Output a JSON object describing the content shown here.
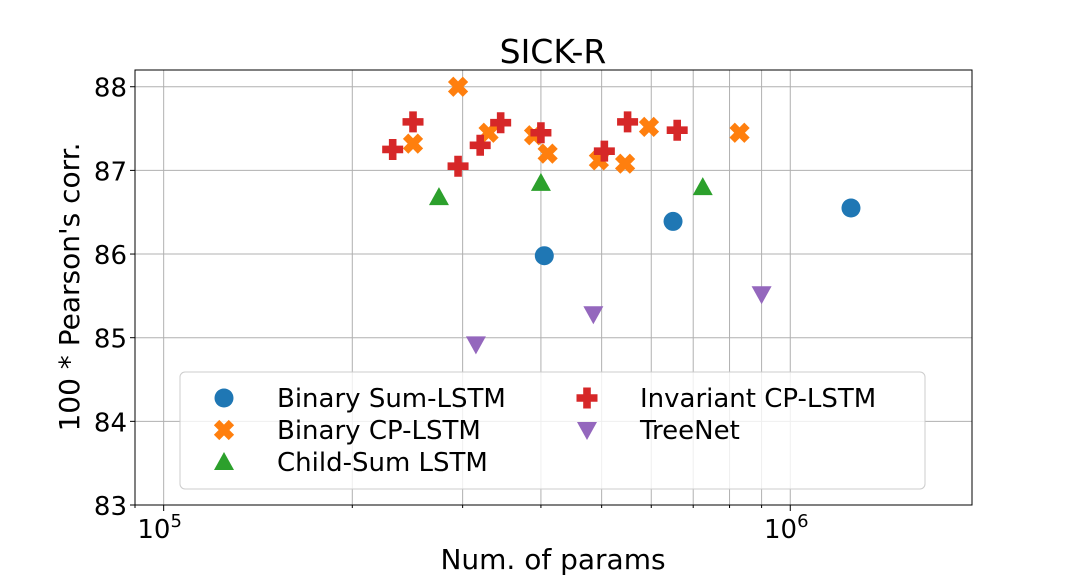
{
  "chart_data": {
    "type": "scatter",
    "title": "SICK-R",
    "xlabel": "Num. of params",
    "ylabel": "100 * Pearson's corr.",
    "xscale": "log",
    "xlim": [
      90000,
      1950000
    ],
    "ylim": [
      83,
      88.2
    ],
    "x_ticks": [
      {
        "value": 100000,
        "base": "10",
        "exp": "5"
      },
      {
        "value": 1000000,
        "base": "10",
        "exp": "6"
      }
    ],
    "y_ticks": [
      83,
      84,
      85,
      86,
      87,
      88
    ],
    "y_tick_labels": [
      "83",
      "84",
      "85",
      "86",
      "87",
      "88"
    ],
    "grid": true,
    "legend": {
      "placement": "lower-left",
      "columns": 2
    },
    "series": [
      {
        "name": "Binary Sum-LSTM",
        "marker": "circle",
        "color": "#1f77b4",
        "points": [
          [
            405000,
            85.98
          ],
          [
            650000,
            86.39
          ],
          [
            1250000,
            86.55
          ]
        ]
      },
      {
        "name": "Binary CP-LSTM",
        "marker": "x",
        "color": "#ff7f0e",
        "points": [
          [
            250000,
            87.32
          ],
          [
            295000,
            88.0
          ],
          [
            330000,
            87.45
          ],
          [
            390000,
            87.42
          ],
          [
            410000,
            87.2
          ],
          [
            495000,
            87.12
          ],
          [
            545000,
            87.08
          ],
          [
            595000,
            87.52
          ],
          [
            830000,
            87.45
          ]
        ]
      },
      {
        "name": "Child-Sum LSTM",
        "marker": "triangle-up",
        "color": "#2ca02c",
        "points": [
          [
            275000,
            86.68
          ],
          [
            400000,
            86.85
          ],
          [
            725000,
            86.8
          ]
        ]
      },
      {
        "name": "Invariant CP-LSTM",
        "marker": "plus",
        "color": "#d62728",
        "points": [
          [
            232000,
            87.25
          ],
          [
            250000,
            87.58
          ],
          [
            295000,
            87.05
          ],
          [
            320000,
            87.3
          ],
          [
            345000,
            87.57
          ],
          [
            400000,
            87.45
          ],
          [
            505000,
            87.23
          ],
          [
            550000,
            87.58
          ],
          [
            660000,
            87.48
          ]
        ]
      },
      {
        "name": "TreeNet",
        "marker": "triangle-down",
        "color": "#9467bd",
        "points": [
          [
            315000,
            84.92
          ],
          [
            485000,
            85.28
          ],
          [
            900000,
            85.52
          ]
        ]
      }
    ]
  }
}
